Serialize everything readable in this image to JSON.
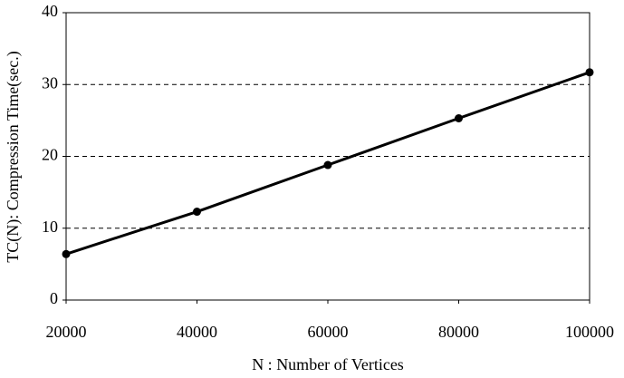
{
  "chart_data": {
    "type": "line",
    "x_label": "N : Number of Vertices",
    "y_label": "TC(N): Compression Time(sec.)",
    "x": [
      20000,
      40000,
      60000,
      80000,
      100000
    ],
    "series": [
      {
        "color": "#000000",
        "values": [
          6.4,
          12.3,
          18.8,
          25.3,
          31.7
        ]
      }
    ],
    "xlim": [
      20000,
      100000
    ],
    "xticks": [
      20000,
      40000,
      60000,
      80000,
      100000
    ],
    "ylim": [
      0,
      40
    ],
    "yticks": [
      0,
      10,
      20,
      30,
      40
    ],
    "grid": true
  }
}
